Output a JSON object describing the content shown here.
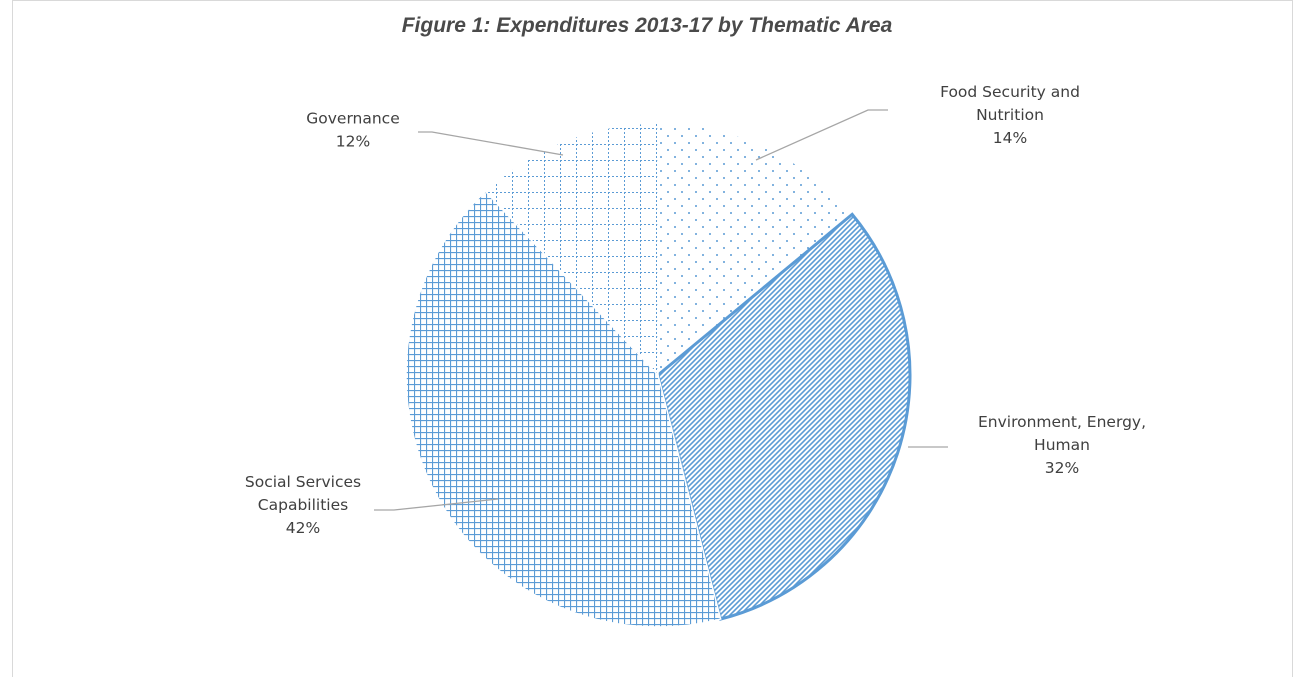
{
  "chart_data": {
    "type": "pie",
    "title": "Figure 1:  Expenditures 2013-17 by Thematic Area",
    "slices": [
      {
        "lines": [
          "Food Security and",
          "Nutrition"
        ],
        "value": 14,
        "value_label": "14%",
        "pattern": "dots"
      },
      {
        "lines": [
          "Environment, Energy,",
          "Human"
        ],
        "value": 32,
        "value_label": "32%",
        "pattern": "diagonal"
      },
      {
        "lines": [
          "Social Services",
          "Capabilities"
        ],
        "value": 42,
        "value_label": "42%",
        "pattern": "grid"
      },
      {
        "lines": [
          "Governance"
        ],
        "value": 12,
        "value_label": "12%",
        "pattern": "dashed-grid"
      }
    ],
    "colors": {
      "accent": "#5b9bd5",
      "leader": "#a6a6a6",
      "text": "#404040",
      "title": "#4a4a4a"
    }
  }
}
